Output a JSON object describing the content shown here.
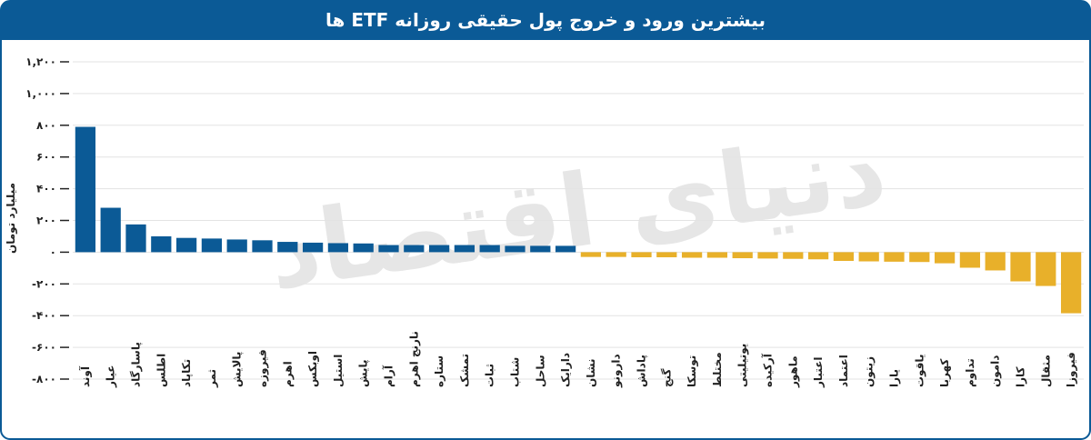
{
  "chart_data": {
    "type": "bar",
    "title": "بیشترین ورود و خروج پول حقیقی روزانه ETF ها",
    "y_label": "میلیارد تومان",
    "watermark": "دنیای اقتصاد",
    "categories": [
      "آوند",
      "عیار",
      "پاسارگاد",
      "اطلس",
      "تکاپاد",
      "ثمر",
      "پالایش",
      "فیروزه",
      "اهرم",
      "اوبکس",
      "استیل",
      "پایش",
      "آرام",
      "نارنج اهرم",
      "ستاره",
      "تمشک",
      "ثبات",
      "شتاب",
      "ساحل",
      "دارایک",
      "نشان",
      "دارونو",
      "پاداش",
      "گنج",
      "توسکا",
      "مختلط",
      "یوتیلیتی",
      "آرکیده",
      "ماهور",
      "اعتبار",
      "اعتماد",
      "زیتون",
      "یارا",
      "یاقوت",
      "کهربا",
      "تداوم",
      "دامون",
      "کارا",
      "مثقال",
      "فیروزا"
    ],
    "values": [
      790,
      280,
      175,
      100,
      90,
      86,
      80,
      75,
      65,
      60,
      57,
      55,
      45,
      45,
      45,
      45,
      45,
      40,
      40,
      40,
      -30,
      -30,
      -32,
      -32,
      -35,
      -35,
      -38,
      -40,
      -42,
      -45,
      -55,
      -58,
      -60,
      -62,
      -70,
      -98,
      -115,
      -184,
      -213,
      -385
    ],
    "positive_color": "#0b5a96",
    "negative_color": "#e8b02a",
    "ylim": [
      -800,
      1200
    ],
    "yticks": [
      {
        "value": -800,
        "label": "-۸۰۰"
      },
      {
        "value": -600,
        "label": "-۶۰۰"
      },
      {
        "value": -400,
        "label": "-۴۰۰"
      },
      {
        "value": -200,
        "label": "-۲۰۰"
      },
      {
        "value": 0,
        "label": "۰"
      },
      {
        "value": 200,
        "label": "۲۰۰"
      },
      {
        "value": 400,
        "label": "۴۰۰"
      },
      {
        "value": 600,
        "label": "۶۰۰"
      },
      {
        "value": 800,
        "label": "۸۰۰"
      },
      {
        "value": 1000,
        "label": "۱,۰۰۰"
      },
      {
        "value": 1200,
        "label": "۱,۲۰۰"
      }
    ],
    "grid": true
  }
}
